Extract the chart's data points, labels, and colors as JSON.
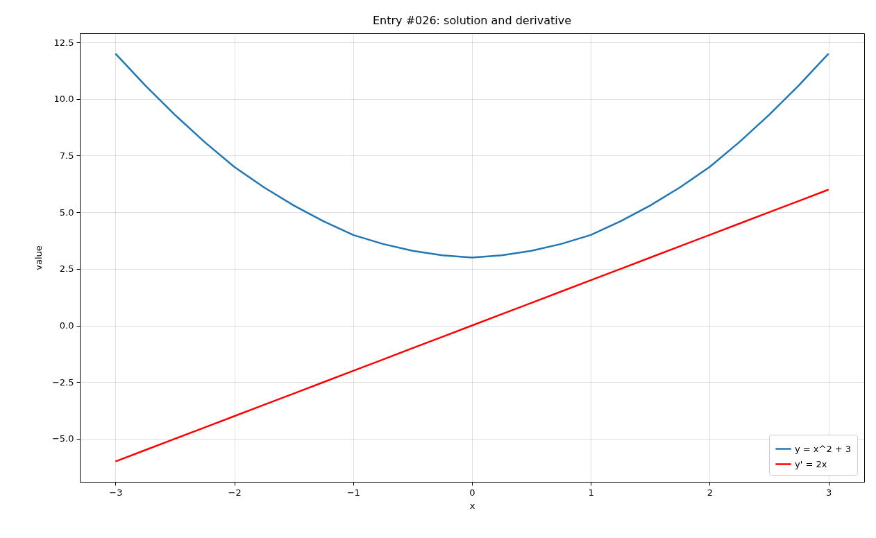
{
  "chart_data": {
    "type": "line",
    "title": "Entry #026: solution and derivative",
    "xlabel": "x",
    "ylabel": "value",
    "x": [
      -3,
      -2.75,
      -2.5,
      -2.25,
      -2,
      -1.75,
      -1.5,
      -1.25,
      -1,
      -0.75,
      -0.5,
      -0.25,
      0,
      0.25,
      0.5,
      0.75,
      1,
      1.25,
      1.5,
      1.75,
      2,
      2.25,
      2.5,
      2.75,
      3
    ],
    "series": [
      {
        "name": "y = x^2 + 3",
        "color": "#1f77b4",
        "values": [
          12,
          10.6,
          9.3,
          8.1,
          7,
          6.1,
          5.3,
          4.6,
          4,
          3.6,
          3.3,
          3.1,
          3,
          3.1,
          3.3,
          3.6,
          4,
          4.6,
          5.3,
          6.1,
          7,
          8.1,
          9.3,
          10.6,
          12
        ]
      },
      {
        "name": "y' = 2x",
        "color": "#ff0000",
        "values": [
          -6,
          -5.5,
          -5,
          -4.5,
          -4,
          -3.5,
          -3,
          -2.5,
          -2,
          -1.5,
          -1,
          -0.5,
          0,
          0.5,
          1,
          1.5,
          2,
          2.5,
          3,
          3.5,
          4,
          4.5,
          5,
          5.5,
          6
        ]
      }
    ],
    "xlim": [
      -3.3,
      3.3
    ],
    "ylim": [
      -6.9,
      12.9
    ],
    "xticks": [
      {
        "value": -3,
        "label": "−3"
      },
      {
        "value": -2,
        "label": "−2"
      },
      {
        "value": -1,
        "label": "−1"
      },
      0,
      1,
      2,
      3
    ],
    "yticks": [
      {
        "value": -5,
        "label": "−5.0"
      },
      {
        "value": -2.5,
        "label": "−2.5"
      },
      {
        "value": 0,
        "label": "0.0"
      },
      {
        "value": 2.5,
        "label": "2.5"
      },
      {
        "value": 5,
        "label": "5.0"
      },
      {
        "value": 7.5,
        "label": "7.5"
      },
      {
        "value": 10,
        "label": "10.0"
      },
      12.5
    ],
    "grid": true,
    "legend": "bottom right"
  }
}
